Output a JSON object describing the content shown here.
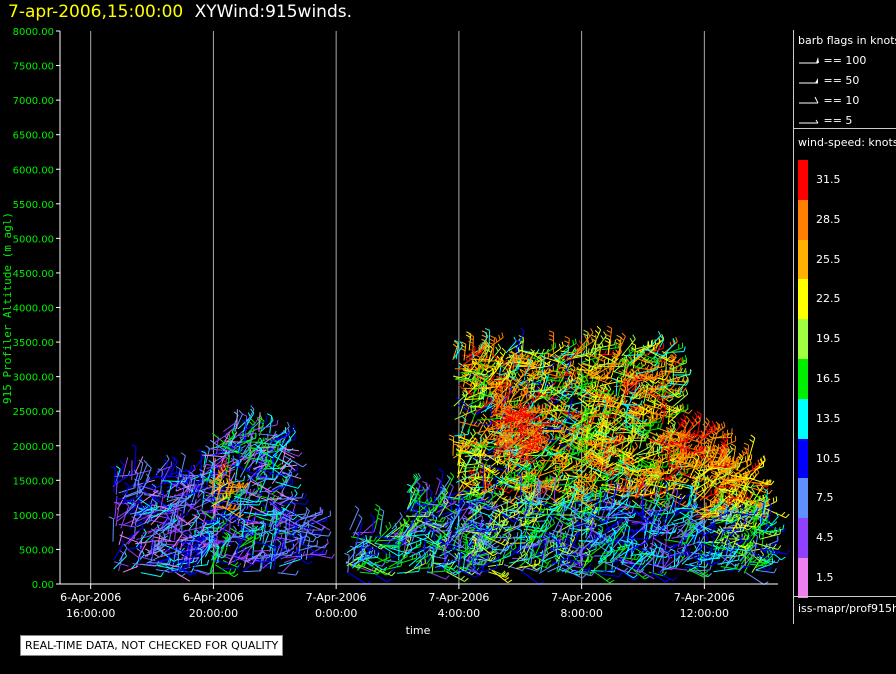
{
  "header": {
    "time": "7-apr-2006,15:00:00",
    "title": "XYWind:915winds."
  },
  "chart_data": {
    "type": "scatter",
    "subtype": "wind-barb time-height",
    "xlabel": "time",
    "ylabel": "915 Profiler Altitude (m agl)",
    "ylim": [
      0,
      8000
    ],
    "yticks": [
      "0.00",
      "500.00",
      "1000.00",
      "1500.00",
      "2000.00",
      "2500.00",
      "3000.00",
      "3500.00",
      "4000.00",
      "4500.00",
      "5000.00",
      "5500.00",
      "6000.00",
      "6500.00",
      "7000.00",
      "7500.00",
      "8000.00"
    ],
    "xticks": [
      {
        "date": "6-Apr-2006",
        "time": "16:00:00",
        "hour": 16
      },
      {
        "date": "6-Apr-2006",
        "time": "20:00:00",
        "hour": 20
      },
      {
        "date": "7-Apr-2006",
        "time": "0:00:00",
        "hour": 24
      },
      {
        "date": "7-Apr-2006",
        "time": "4:00:00",
        "hour": 28
      },
      {
        "date": "7-Apr-2006",
        "time": "8:00:00",
        "hour": 32
      },
      {
        "date": "7-Apr-2006",
        "time": "12:00:00",
        "hour": 36
      }
    ],
    "xlim_hours": [
      15,
      38.4
    ],
    "grid": "vertical",
    "color_scale": {
      "title": "wind-speed: knots",
      "levels": [
        {
          "label": "31.5",
          "color": "#ff0000"
        },
        {
          "label": "28.5",
          "color": "#ff8000"
        },
        {
          "label": "25.5",
          "color": "#ffb000"
        },
        {
          "label": "22.5",
          "color": "#ffff00"
        },
        {
          "label": "19.5",
          "color": "#a0ff40"
        },
        {
          "label": "16.5",
          "color": "#00ee00"
        },
        {
          "label": "13.5",
          "color": "#00ffff"
        },
        {
          "label": "10.5",
          "color": "#0000ff"
        },
        {
          "label": "7.5",
          "color": "#6090ff"
        },
        {
          "label": "4.5",
          "color": "#9040ff"
        },
        {
          "label": "1.5",
          "color": "#ee80ee"
        }
      ]
    },
    "barb_legend": {
      "title": "barb flags in knots",
      "entries": [
        "== 100",
        "== 50",
        "== 10",
        "== 5"
      ]
    },
    "clusters": [
      {
        "hours": [
          16.7,
          19.6
        ],
        "alt": [
          150,
          1650
        ],
        "speed": [
          1.5,
          13.5
        ]
      },
      {
        "hours": [
          19.6,
          22.3
        ],
        "alt": [
          150,
          2250
        ],
        "speed": [
          1.5,
          16.5
        ]
      },
      {
        "hours": [
          19.9,
          20.5
        ],
        "alt": [
          1100,
          1500
        ],
        "speed": [
          22.5,
          31.5
        ]
      },
      {
        "hours": [
          22.3,
          23.2
        ],
        "alt": [
          300,
          1000
        ],
        "speed": [
          4.5,
          10.5
        ]
      },
      {
        "hours": [
          24.3,
          26.2
        ],
        "alt": [
          150,
          800
        ],
        "speed": [
          4.5,
          19.5
        ]
      },
      {
        "hours": [
          26.2,
          28.5
        ],
        "alt": [
          150,
          1350
        ],
        "speed": [
          4.5,
          19.5
        ]
      },
      {
        "hours": [
          27.8,
          31.6
        ],
        "alt": [
          1200,
          3400
        ],
        "speed": [
          10.5,
          31.5
        ]
      },
      {
        "hours": [
          28.2,
          32.2
        ],
        "alt": [
          150,
          1200
        ],
        "speed": [
          4.5,
          22.5
        ]
      },
      {
        "hours": [
          29.0,
          30.4
        ],
        "alt": [
          1800,
          2600
        ],
        "speed": [
          28.5,
          31.5
        ]
      },
      {
        "hours": [
          31.6,
          35.0
        ],
        "alt": [
          1200,
          3400
        ],
        "speed": [
          13.5,
          31.5
        ]
      },
      {
        "hours": [
          32.2,
          35.8
        ],
        "alt": [
          150,
          1200
        ],
        "speed": [
          4.5,
          16.5
        ]
      },
      {
        "hours": [
          34.8,
          36.6
        ],
        "alt": [
          1600,
          2200
        ],
        "speed": [
          25.5,
          31.5
        ]
      },
      {
        "hours": [
          35.5,
          37.6
        ],
        "alt": [
          900,
          1800
        ],
        "speed": [
          19.5,
          31.5
        ]
      },
      {
        "hours": [
          35.8,
          38.0
        ],
        "alt": [
          150,
          1100
        ],
        "speed": [
          7.5,
          22.5
        ]
      }
    ]
  },
  "source_label": "iss-mapr/prof915h",
  "quality_note": "REAL-TIME DATA, NOT CHECKED FOR QUALITY"
}
